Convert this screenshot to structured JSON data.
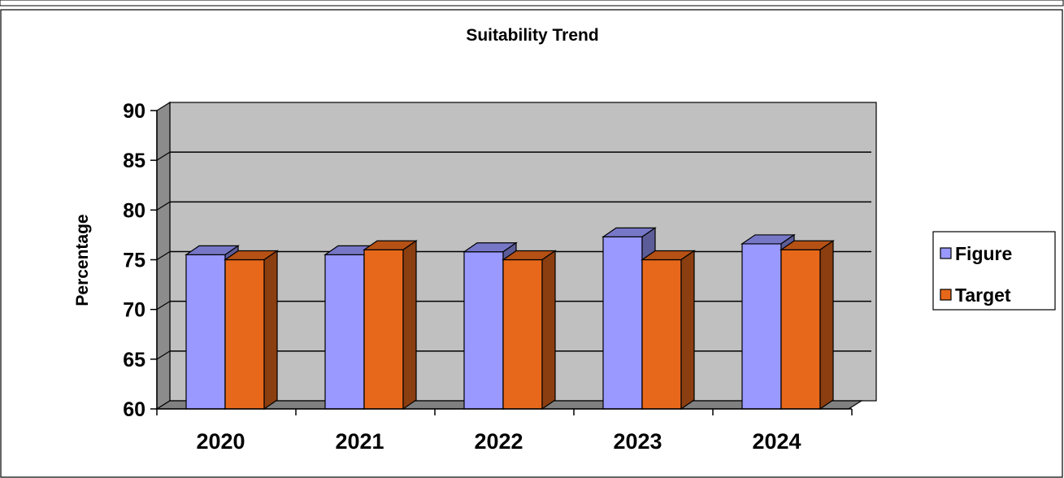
{
  "chart_data": {
    "type": "bar",
    "title": "Suitability Trend",
    "xlabel": "",
    "ylabel": "Percentage",
    "categories": [
      "2020",
      "2021",
      "2022",
      "2023",
      "2024"
    ],
    "series": [
      {
        "name": "Figure",
        "values": [
          75.5,
          75.5,
          75.8,
          77.3,
          76.6
        ]
      },
      {
        "name": "Target",
        "values": [
          75,
          76,
          75,
          75,
          76
        ]
      }
    ],
    "ylim": [
      60,
      90
    ],
    "yticks": [
      60,
      65,
      70,
      75,
      80,
      85,
      90
    ],
    "grid": true,
    "legend": "right",
    "three_d": true
  },
  "colors": {
    "figure": "#9999ff",
    "target": "#e8681b",
    "wall": "#c0c0c0",
    "floor": "#808080",
    "side_wall": "#8c8c8c"
  }
}
